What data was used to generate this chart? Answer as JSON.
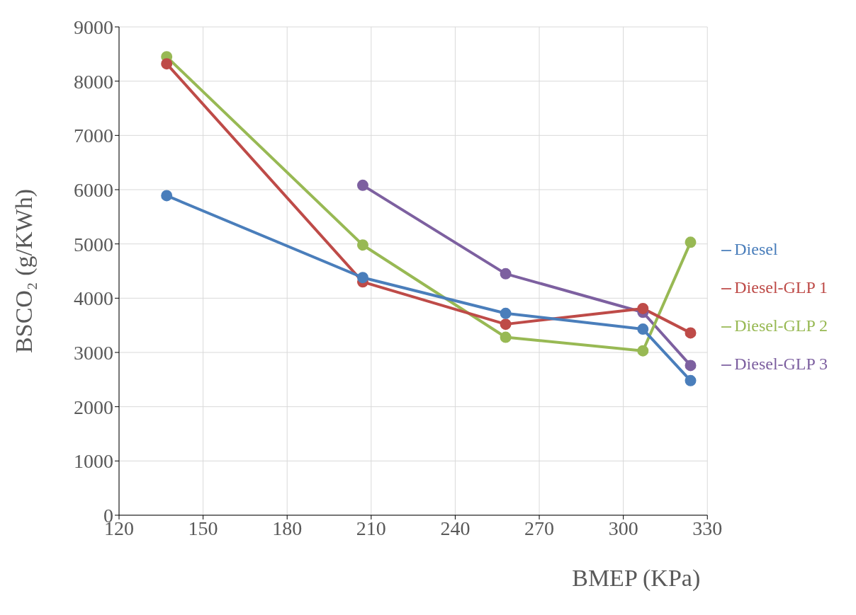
{
  "chart_data": {
    "type": "line",
    "xlabel": "BMEP (KPa)",
    "ylabel": "BSCO₂ (g/KWh)",
    "x": [
      137,
      207,
      258,
      307,
      324
    ],
    "series": [
      {
        "name": "Diesel",
        "color": "#4a7ebb",
        "values": [
          5890,
          4380,
          3720,
          3430,
          2480
        ]
      },
      {
        "name": "Diesel-GLP 1",
        "color": "#be4b48",
        "values": [
          8320,
          4300,
          3520,
          3810,
          3360
        ]
      },
      {
        "name": "Diesel-GLP 2",
        "color": "#98b954",
        "values": [
          8450,
          4980,
          3280,
          3030,
          5030
        ]
      },
      {
        "name": "Diesel-GLP 3",
        "color": "#7d60a0",
        "values": [
          null,
          6080,
          4450,
          3740,
          2760
        ]
      }
    ],
    "xlim": [
      120,
      330
    ],
    "xticks": [
      120,
      150,
      180,
      210,
      240,
      270,
      300,
      330
    ],
    "ylim": [
      0,
      9000
    ],
    "yticks": [
      0,
      1000,
      2000,
      3000,
      4000,
      5000,
      6000,
      7000,
      8000,
      9000
    ],
    "grid": true,
    "legend": "right",
    "marker": "circle",
    "line_style": "solid"
  }
}
